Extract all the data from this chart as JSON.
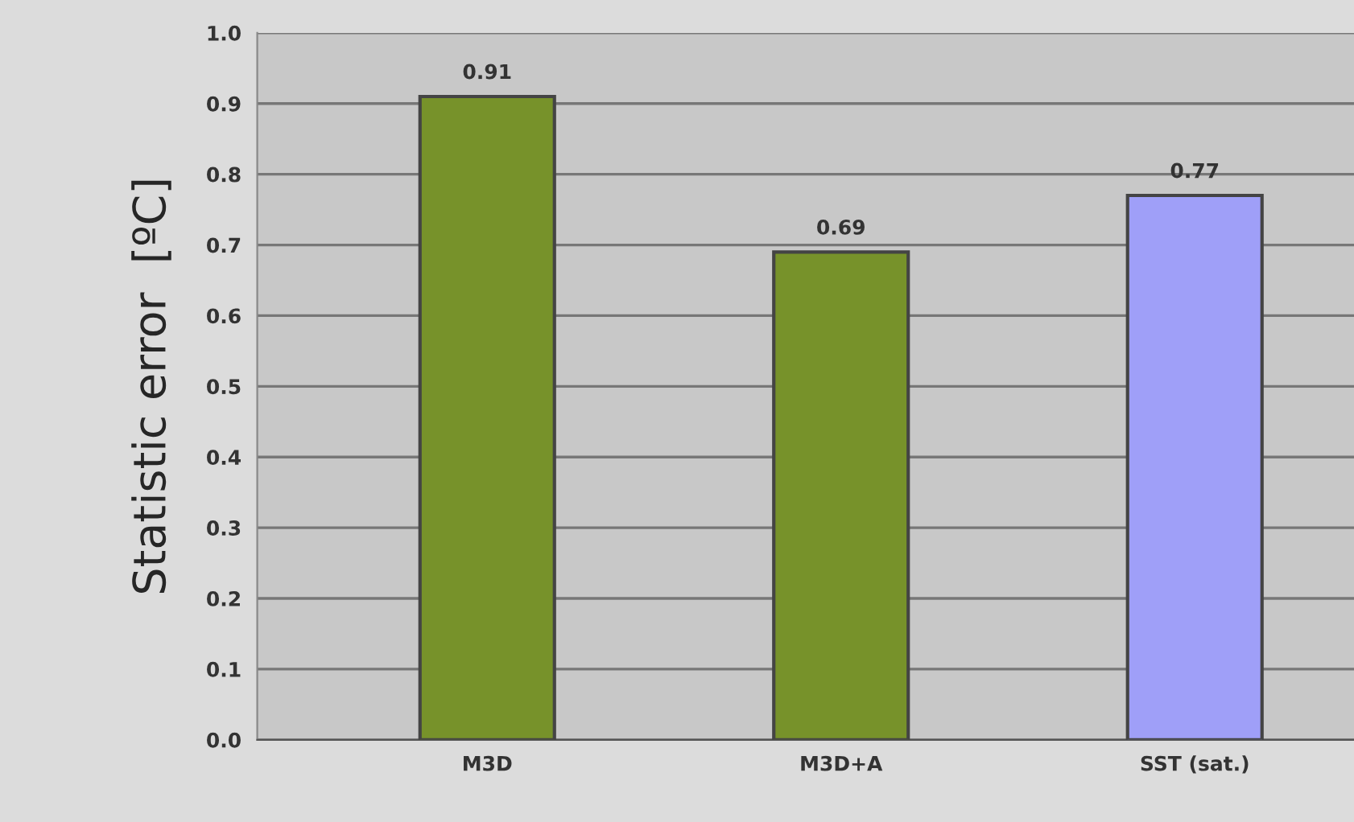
{
  "chart_data": {
    "type": "bar",
    "ylabel": "Statistic error  [ºC]",
    "categories": [
      "M3D",
      "M3D+A",
      "SST (sat.)"
    ],
    "values": [
      0.91,
      0.69,
      0.77
    ],
    "colors": [
      "#77922a",
      "#77922a",
      "#9f9ff8"
    ],
    "ylim": [
      0,
      1.0
    ],
    "yticks": [
      {
        "value": 0,
        "label": "0.0"
      },
      0.1,
      0.2,
      0.3,
      0.4,
      0.5,
      0.6,
      0.7,
      0.8,
      0.9,
      {
        "value": 1,
        "label": "1.0"
      }
    ],
    "grid": "y",
    "data_labels": true
  }
}
